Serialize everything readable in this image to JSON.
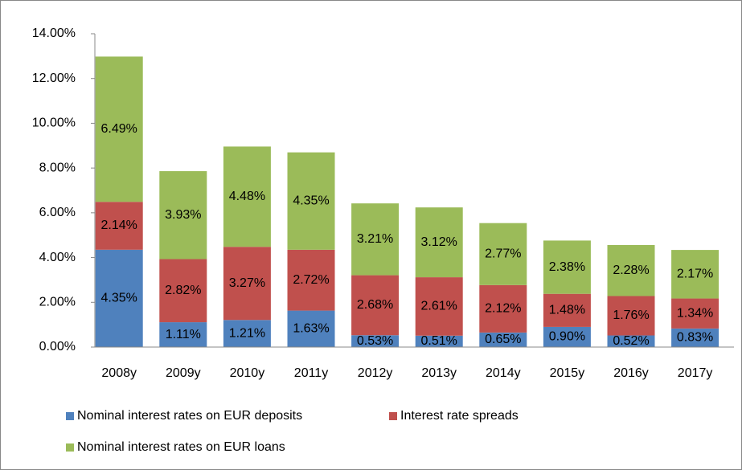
{
  "chart_data": {
    "type": "bar",
    "stacked": true,
    "categories": [
      "2008y",
      "2009y",
      "2010y",
      "2011y",
      "2012y",
      "2013y",
      "2014y",
      "2015y",
      "2016y",
      "2017y"
    ],
    "series": [
      {
        "name": "Nominal interest rates on EUR deposits",
        "color": "#4f81bd",
        "values": [
          4.35,
          1.11,
          1.21,
          1.63,
          0.53,
          0.51,
          0.65,
          0.9,
          0.52,
          0.83
        ],
        "value_labels": [
          "4.35%",
          "1.11%",
          "1.21%",
          "1.63%",
          "0.53%",
          "0.51%",
          "0.65%",
          "0.90%",
          "0.52%",
          "0.83%"
        ]
      },
      {
        "name": "Interest rate spreads",
        "color": "#c0504d",
        "values": [
          2.14,
          2.82,
          3.27,
          2.72,
          2.68,
          2.61,
          2.12,
          1.48,
          1.76,
          1.34
        ],
        "value_labels": [
          "2.14%",
          "2.82%",
          "3.27%",
          "2.72%",
          "2.68%",
          "2.61%",
          "2.12%",
          "1.48%",
          "1.76%",
          "1.34%"
        ]
      },
      {
        "name": "Nominal interest rates on EUR loans",
        "color": "#9bbb59",
        "values": [
          6.49,
          3.93,
          4.48,
          4.35,
          3.21,
          3.12,
          2.77,
          2.38,
          2.28,
          2.17
        ],
        "value_labels": [
          "6.49%",
          "3.93%",
          "4.48%",
          "4.35%",
          "3.21%",
          "3.12%",
          "2.77%",
          "2.38%",
          "2.28%",
          "2.17%"
        ]
      }
    ],
    "ylim": [
      0,
      14
    ],
    "yticks": [
      {
        "value": 0,
        "label": "0.00%"
      },
      {
        "value": 2,
        "label": "2.00%"
      },
      {
        "value": 4,
        "label": "4.00%"
      },
      {
        "value": 6,
        "label": "6.00%"
      },
      {
        "value": 8,
        "label": "8.00%"
      },
      {
        "value": 10,
        "label": "10.00%"
      },
      {
        "value": 12,
        "label": "12.00%"
      },
      {
        "value": 14,
        "label": "14.00%"
      }
    ],
    "legend": "bottom"
  }
}
